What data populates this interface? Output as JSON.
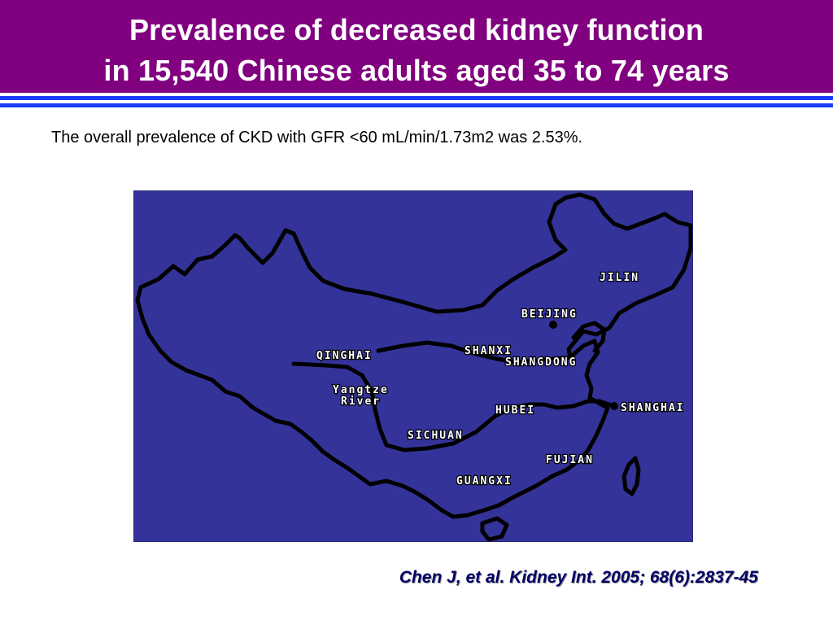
{
  "title": {
    "line1": "Prevalence of decreased kidney function",
    "line2": "in 15,540 Chinese adults aged 35 to 74 years"
  },
  "subtitle": "The overall prevalence of CKD with GFR <60 mL/min/1.73m2 was 2.53%.",
  "map": {
    "background_color": "#333399",
    "labels": {
      "jilin": "JILIN",
      "beijing": "BEIJING",
      "qinghai": "QINGHAI",
      "shanxi": "SHANXI",
      "shangdong": "SHANGDONG",
      "yangtze": "Yangtze",
      "river": "River",
      "hubei": "HUBEI",
      "shanghai": "SHANGHAI",
      "sichuan": "SICHUAN",
      "fujian": "FUJIAN",
      "guangxi": "GUANGXI"
    }
  },
  "citation": "Chen J, et al. Kidney Int. 2005; 68(6):2837-45",
  "colors": {
    "title_bar": "#800080",
    "rules": "#1a3cff",
    "citation": "#000066"
  }
}
